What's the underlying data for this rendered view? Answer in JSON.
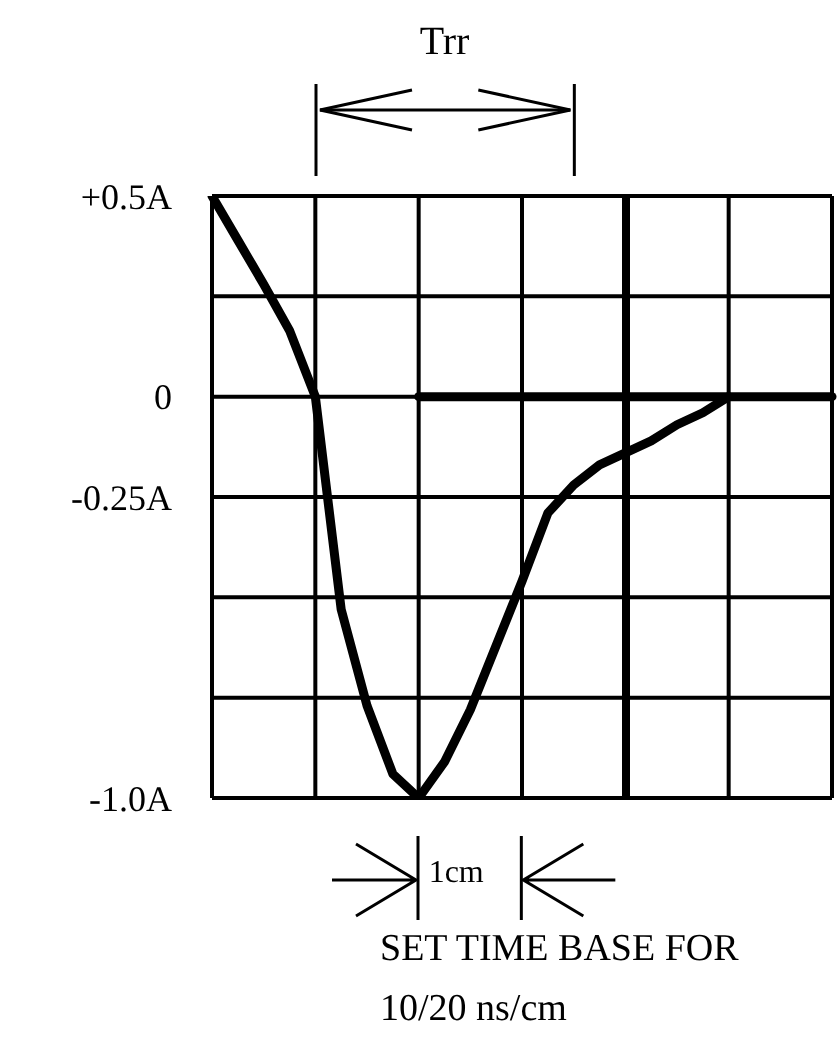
{
  "chart_data": {
    "type": "line",
    "annotations": [
      "Trr",
      "1cm",
      "SET TIME BASE FOR 10/20 ns/cm"
    ],
    "categories": [
      null,
      null,
      null,
      null,
      null,
      null,
      null,
      null,
      null,
      null,
      null,
      null,
      null,
      null,
      null,
      null,
      null,
      null,
      null,
      null,
      null,
      null,
      null,
      null,
      null
    ],
    "ylim": [
      -1,
      0.5
    ],
    "yticks": [
      {
        "value": 0.5,
        "label": "+0.5A"
      },
      {
        "value": 0.25,
        "label": null
      },
      0,
      {
        "value": -0.25,
        "label": "-0.25A"
      },
      {
        "value": -0.5,
        "label": null
      },
      {
        "value": -0.75,
        "label": null
      },
      {
        "value": -1,
        "label": "-1.0A"
      }
    ],
    "tick_labels": "y",
    "grid": true,
    "marker": "none",
    "line_style": "solid",
    "series": [
      {
        "color": "#000000",
        "values": [
          0.5,
          0.39,
          0.28,
          0.165,
          0,
          -0.53,
          -0.77,
          -0.94,
          -1.0,
          -0.91,
          -0.78,
          -0.62,
          -0.46,
          -0.29,
          -0.22,
          -0.17,
          -0.14,
          -0.11,
          -0.07,
          -0.04,
          0,
          null,
          null,
          null,
          null
        ]
      },
      {
        "color": "#000000",
        "values": [
          null,
          null,
          null,
          null,
          null,
          null,
          null,
          null,
          0,
          0,
          0,
          0,
          0,
          0,
          0,
          0,
          0,
          0,
          0,
          0,
          0,
          0,
          0,
          0,
          0
        ]
      }
    ]
  }
}
